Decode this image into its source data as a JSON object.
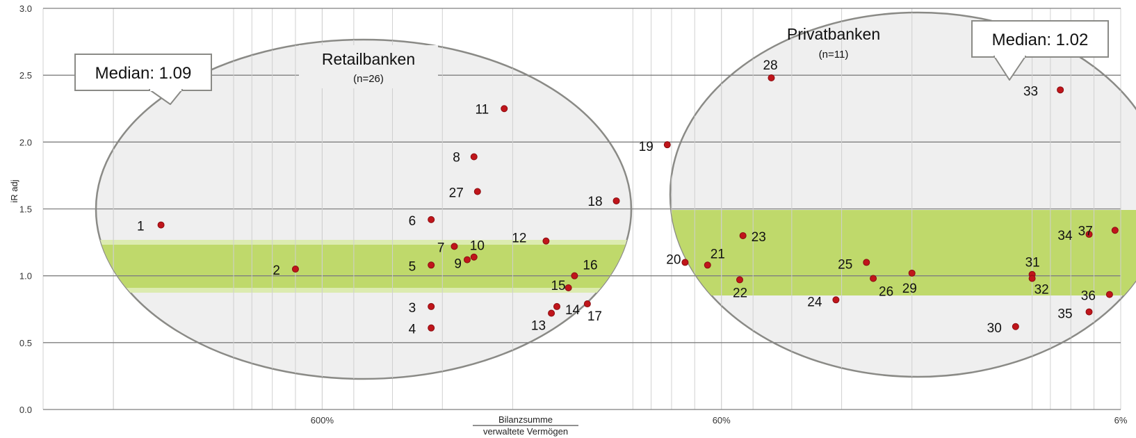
{
  "chart_data": {
    "type": "scatter",
    "ylabel": "iR adj",
    "ylim": [
      0,
      3
    ],
    "yticks": [
      0.0,
      0.5,
      1.0,
      1.5,
      2.0,
      2.5,
      3.0
    ],
    "ytick_labels": [
      "0.0",
      "0.5",
      "1.0",
      "1.5",
      "2.0",
      "2.5",
      "3.0"
    ],
    "xscale": "log",
    "xlim": [
      30,
      0.06
    ],
    "xticks": [
      6,
      0.6,
      0.06
    ],
    "xtick_labels": [
      "600%",
      "60%",
      "6%"
    ],
    "xlabel_numerator": "Bilanzsumme",
    "xlabel_denominator": "verwaltete Vermögen",
    "grid": true,
    "point_color": "#c0151b",
    "band_color": "#bfd96b",
    "ellipse_fill": "#efefef",
    "ellipse_stroke": "#8a8a86",
    "groups": [
      {
        "title": "Retailbanken",
        "n_label": "(n=26)",
        "callout": "Median: 1.09",
        "band_y": [
          0.9,
          1.25
        ]
      },
      {
        "title": "Privatbanken",
        "n_label": "(n=11)",
        "callout": "Median: 1.02",
        "band_y": [
          0.86,
          1.48
        ]
      }
    ],
    "points": [
      {
        "label": "1",
        "x": 15.2,
        "y": 1.38
      },
      {
        "label": "2",
        "x": 7.0,
        "y": 1.05
      },
      {
        "label": "3",
        "x": 3.2,
        "y": 0.77
      },
      {
        "label": "4",
        "x": 3.2,
        "y": 0.61
      },
      {
        "label": "5",
        "x": 3.2,
        "y": 1.08
      },
      {
        "label": "6",
        "x": 3.2,
        "y": 1.42
      },
      {
        "label": "7",
        "x": 2.8,
        "y": 1.22
      },
      {
        "label": "8",
        "x": 2.5,
        "y": 1.89
      },
      {
        "label": "9",
        "x": 2.6,
        "y": 1.12
      },
      {
        "label": "10",
        "x": 2.5,
        "y": 1.14
      },
      {
        "label": "11",
        "x": 2.1,
        "y": 2.25
      },
      {
        "label": "12",
        "x": 1.65,
        "y": 1.26
      },
      {
        "label": "13",
        "x": 1.6,
        "y": 0.72
      },
      {
        "label": "14",
        "x": 1.55,
        "y": 0.77
      },
      {
        "label": "15",
        "x": 1.45,
        "y": 0.91
      },
      {
        "label": "16",
        "x": 1.4,
        "y": 1.0
      },
      {
        "label": "17",
        "x": 1.3,
        "y": 0.79
      },
      {
        "label": "18",
        "x": 1.1,
        "y": 1.56
      },
      {
        "label": "19",
        "x": 0.82,
        "y": 1.98
      },
      {
        "label": "20",
        "x": 0.74,
        "y": 1.1
      },
      {
        "label": "21",
        "x": 0.65,
        "y": 1.08
      },
      {
        "label": "22",
        "x": 0.54,
        "y": 0.97
      },
      {
        "label": "23",
        "x": 0.53,
        "y": 1.3
      },
      {
        "label": "24",
        "x": 0.31,
        "y": 0.82
      },
      {
        "label": "25",
        "x": 0.26,
        "y": 1.1
      },
      {
        "label": "26",
        "x": 0.25,
        "y": 0.98
      },
      {
        "label": "27",
        "x": 2.45,
        "y": 1.63
      },
      {
        "label": "28",
        "x": 0.45,
        "y": 2.48
      },
      {
        "label": "29",
        "x": 0.2,
        "y": 1.02
      },
      {
        "label": "30",
        "x": 0.11,
        "y": 0.62
      },
      {
        "label": "31",
        "x": 0.1,
        "y": 1.01
      },
      {
        "label": "32",
        "x": 0.1,
        "y": 0.98
      },
      {
        "label": "33",
        "x": 0.085,
        "y": 2.39
      },
      {
        "label": "34",
        "x": 0.072,
        "y": 1.31
      },
      {
        "label": "35",
        "x": 0.072,
        "y": 0.73
      },
      {
        "label": "36",
        "x": 0.064,
        "y": 0.86
      },
      {
        "label": "37",
        "x": 0.062,
        "y": 1.34
      }
    ]
  }
}
